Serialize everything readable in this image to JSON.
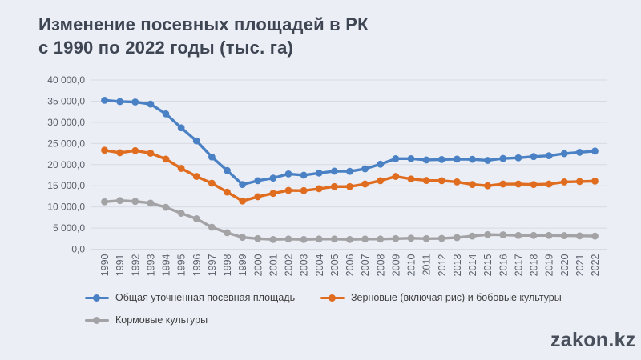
{
  "title": {
    "line1": "Изменение посевных площадей в РК",
    "line2": "с 1990 по 2022 годы (тыс. га)"
  },
  "footer": {
    "logo_text": "zakon.kz"
  },
  "colors": {
    "background": "#ebeef5",
    "gridline": "#d7dae3",
    "title_text": "#3e4553",
    "axis_text": "#5a606b",
    "legend_text": "#3f3f3f",
    "logo_text": "#49505c",
    "series_blue": "#4a81c4",
    "series_orange": "#e06c1f",
    "series_gray": "#a3a3a5"
  },
  "chart_data": {
    "type": "line",
    "title": "Изменение посевных площадей в РК с 1990 по 2022 годы (тыс. га)",
    "xlabel": "",
    "ylabel": "",
    "x": [
      1990,
      1991,
      1992,
      1993,
      1994,
      1995,
      1996,
      1997,
      1998,
      1999,
      2000,
      2001,
      2002,
      2003,
      2004,
      2005,
      2006,
      2007,
      2008,
      2009,
      2010,
      2011,
      2012,
      2013,
      2014,
      2015,
      2016,
      2017,
      2018,
      2019,
      2020,
      2021,
      2022
    ],
    "ylim": [
      0,
      40000
    ],
    "ytick_step": 5000,
    "ytick_label_format": "ru thousands space, one decimal comma (e.g. 40 000,0)",
    "grid": true,
    "legend_position": "bottom-left",
    "markers": "circle",
    "series": [
      {
        "name": "Общая уточненная посевная площадь",
        "color": "#4a81c4",
        "values": [
          35200,
          34900,
          34800,
          34300,
          32000,
          28700,
          25600,
          21800,
          18600,
          15300,
          16200,
          16800,
          17800,
          17500,
          18000,
          18450,
          18400,
          19000,
          20100,
          21400,
          21400,
          21100,
          21200,
          21300,
          21250,
          21000,
          21450,
          21600,
          21900,
          22100,
          22600,
          22900,
          23200
        ]
      },
      {
        "name": "Зерновые (включая рис) и бобовые культуры",
        "color": "#e06c1f",
        "values": [
          23400,
          22800,
          23300,
          22700,
          21300,
          19100,
          17200,
          15600,
          13500,
          11400,
          12400,
          13200,
          13900,
          13850,
          14300,
          14800,
          14800,
          15400,
          16200,
          17200,
          16600,
          16250,
          16200,
          15900,
          15300,
          15000,
          15400,
          15400,
          15300,
          15400,
          15900,
          16000,
          16100
        ]
      },
      {
        "name": "Кормовые культуры",
        "color": "#a3a3a5",
        "values": [
          11200,
          11500,
          11300,
          10900,
          9900,
          8500,
          7200,
          5200,
          3900,
          2800,
          2500,
          2300,
          2400,
          2300,
          2400,
          2400,
          2300,
          2400,
          2400,
          2500,
          2600,
          2500,
          2550,
          2750,
          3100,
          3450,
          3400,
          3250,
          3250,
          3250,
          3200,
          3150,
          3100
        ]
      }
    ]
  }
}
